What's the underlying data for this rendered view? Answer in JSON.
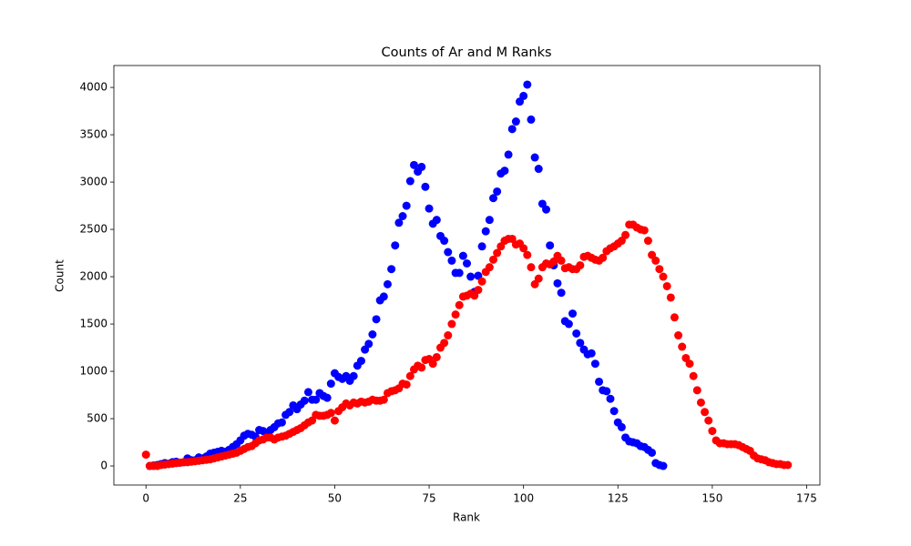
{
  "chart_data": {
    "type": "scatter",
    "title": "Counts of Ar and M Ranks",
    "x_label": "Rank",
    "y_label": "Count",
    "xlim": [
      -8.5,
      178.5
    ],
    "ylim": [
      -201.5,
      4231.5
    ],
    "xticks": [
      0,
      25,
      50,
      75,
      100,
      125,
      150,
      175
    ],
    "yticks": [
      0,
      500,
      1000,
      1500,
      2000,
      2500,
      3000,
      3500,
      4000
    ],
    "grid": false,
    "series": [
      {
        "color": "#0000ff",
        "x": [
          1,
          2,
          3,
          4,
          5,
          6,
          7,
          8,
          9,
          10,
          11,
          12,
          13,
          14,
          15,
          16,
          17,
          18,
          19,
          20,
          21,
          22,
          23,
          24,
          25,
          26,
          27,
          28,
          29,
          30,
          31,
          32,
          33,
          34,
          35,
          36,
          37,
          38,
          39,
          40,
          41,
          42,
          43,
          44,
          45,
          46,
          47,
          48,
          49,
          50,
          51,
          52,
          53,
          54,
          55,
          56,
          57,
          58,
          59,
          60,
          61,
          62,
          63,
          64,
          65,
          66,
          67,
          68,
          69,
          70,
          71,
          72,
          73,
          74,
          75,
          76,
          77,
          78,
          79,
          80,
          81,
          82,
          83,
          84,
          85,
          86,
          87,
          88,
          89,
          90,
          91,
          92,
          93,
          94,
          95,
          96,
          97,
          98,
          99,
          100,
          101,
          102,
          103,
          104,
          105,
          106,
          107,
          108,
          109,
          110,
          111,
          112,
          113,
          114,
          115,
          116,
          117,
          118,
          119,
          120,
          121,
          122,
          123,
          124,
          125,
          126,
          127,
          128,
          129,
          130,
          131,
          132,
          133,
          134,
          135,
          136,
          137
        ],
        "values": [
          0,
          5,
          10,
          20,
          30,
          25,
          40,
          45,
          35,
          40,
          80,
          60,
          60,
          90,
          80,
          100,
          130,
          140,
          150,
          160,
          150,
          170,
          200,
          230,
          270,
          320,
          340,
          330,
          310,
          380,
          370,
          350,
          380,
          410,
          450,
          460,
          540,
          570,
          640,
          600,
          650,
          690,
          780,
          700,
          700,
          770,
          740,
          720,
          870,
          980,
          940,
          920,
          950,
          900,
          950,
          1060,
          1110,
          1230,
          1290,
          1390,
          1550,
          1750,
          1790,
          1920,
          2080,
          2330,
          2570,
          2640,
          2750,
          3010,
          3180,
          3110,
          3160,
          2950,
          2720,
          2560,
          2600,
          2430,
          2380,
          2260,
          2170,
          2040,
          2040,
          2220,
          2140,
          2000,
          1840,
          2010,
          2320,
          2480,
          2600,
          2830,
          2900,
          3090,
          3120,
          3290,
          3560,
          3640,
          3850,
          3910,
          4030,
          3660,
          3260,
          3140,
          2770,
          2710,
          2330,
          2120,
          1930,
          1830,
          1530,
          1500,
          1610,
          1400,
          1300,
          1230,
          1180,
          1190,
          1080,
          890,
          800,
          790,
          710,
          580,
          460,
          410,
          300,
          260,
          250,
          240,
          210,
          200,
          170,
          140,
          30,
          10,
          0
        ]
      },
      {
        "color": "#ff0000",
        "x": [
          0,
          1,
          2,
          3,
          4,
          5,
          6,
          7,
          8,
          9,
          10,
          11,
          12,
          13,
          14,
          15,
          16,
          17,
          18,
          19,
          20,
          21,
          22,
          23,
          24,
          25,
          26,
          27,
          28,
          29,
          30,
          31,
          32,
          33,
          34,
          35,
          36,
          37,
          38,
          39,
          40,
          41,
          42,
          43,
          44,
          45,
          46,
          47,
          48,
          49,
          50,
          51,
          52,
          53,
          54,
          55,
          56,
          57,
          58,
          59,
          60,
          61,
          62,
          63,
          64,
          65,
          66,
          67,
          68,
          69,
          70,
          71,
          72,
          73,
          74,
          75,
          76,
          77,
          78,
          79,
          80,
          81,
          82,
          83,
          84,
          85,
          86,
          87,
          88,
          89,
          90,
          91,
          92,
          93,
          94,
          95,
          96,
          97,
          98,
          99,
          100,
          101,
          102,
          103,
          104,
          105,
          106,
          107,
          108,
          109,
          110,
          111,
          112,
          113,
          114,
          115,
          116,
          117,
          118,
          119,
          120,
          121,
          122,
          123,
          124,
          125,
          126,
          127,
          128,
          129,
          130,
          131,
          132,
          133,
          134,
          135,
          136,
          137,
          138,
          139,
          140,
          141,
          142,
          143,
          144,
          145,
          146,
          147,
          148,
          149,
          150,
          151,
          152,
          153,
          154,
          155,
          156,
          157,
          158,
          159,
          160,
          161,
          162,
          163,
          164,
          165,
          166,
          167,
          168,
          169,
          170
        ],
        "values": [
          120,
          0,
          0,
          0,
          10,
          15,
          20,
          25,
          30,
          35,
          40,
          40,
          45,
          50,
          55,
          60,
          65,
          70,
          80,
          90,
          100,
          110,
          120,
          130,
          140,
          160,
          180,
          200,
          210,
          240,
          270,
          280,
          300,
          300,
          280,
          300,
          310,
          320,
          340,
          360,
          380,
          400,
          430,
          460,
          480,
          540,
          530,
          530,
          540,
          560,
          480,
          580,
          620,
          660,
          640,
          670,
          660,
          680,
          670,
          680,
          700,
          690,
          690,
          700,
          770,
          790,
          800,
          820,
          870,
          860,
          950,
          1020,
          1060,
          1040,
          1120,
          1130,
          1080,
          1150,
          1250,
          1300,
          1380,
          1500,
          1600,
          1700,
          1790,
          1800,
          1820,
          1800,
          1860,
          1950,
          2050,
          2100,
          2180,
          2250,
          2320,
          2380,
          2400,
          2400,
          2340,
          2350,
          2300,
          2230,
          2100,
          1920,
          1980,
          2100,
          2140,
          2130,
          2160,
          2220,
          2170,
          2090,
          2100,
          2080,
          2080,
          2120,
          2210,
          2220,
          2200,
          2180,
          2170,
          2200,
          2270,
          2300,
          2320,
          2350,
          2380,
          2440,
          2550,
          2550,
          2520,
          2500,
          2490,
          2380,
          2230,
          2170,
          2080,
          2000,
          1900,
          1780,
          1570,
          1380,
          1260,
          1140,
          1080,
          950,
          800,
          670,
          570,
          480,
          370,
          270,
          240,
          240,
          230,
          230,
          230,
          220,
          200,
          180,
          160,
          110,
          80,
          70,
          60,
          40,
          30,
          20,
          20,
          10,
          10
        ]
      }
    ]
  }
}
